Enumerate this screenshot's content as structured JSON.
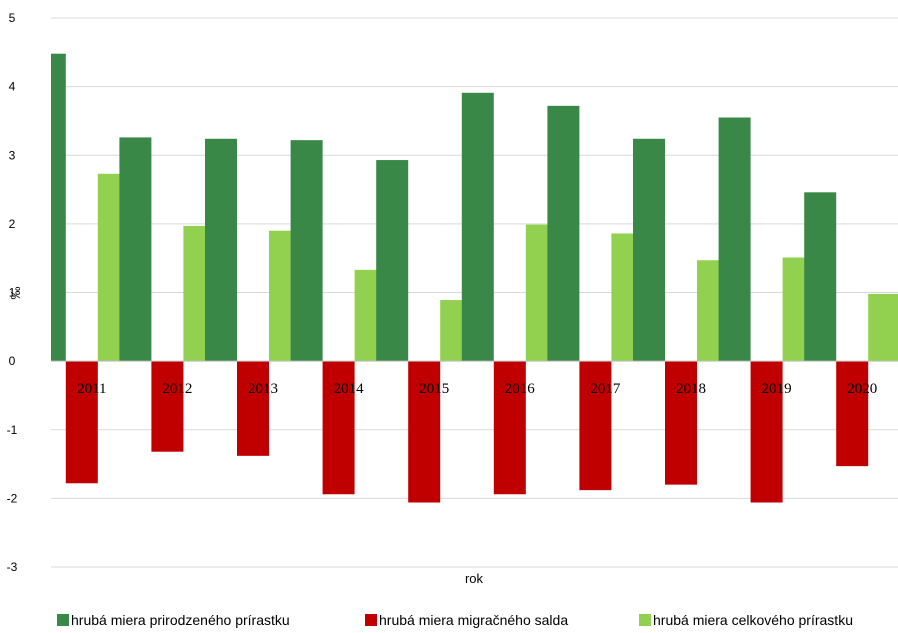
{
  "chart_data": {
    "type": "bar",
    "categories": [
      "2011",
      "2012",
      "2013",
      "2014",
      "2015",
      "2016",
      "2017",
      "2018",
      "2019",
      "2020"
    ],
    "series": [
      {
        "name": "hrubá miera prirodzeného prírastku",
        "color": "#3a8848",
        "values": [
          4.48,
          3.26,
          3.24,
          3.22,
          2.93,
          3.91,
          3.72,
          3.24,
          3.55,
          2.46
        ]
      },
      {
        "name": "hrubá miera migračného salda",
        "color": "#c00000",
        "values": [
          -1.78,
          -1.32,
          -1.38,
          -1.94,
          -2.06,
          -1.94,
          -1.88,
          -1.8,
          -2.06,
          -1.53
        ]
      },
      {
        "name": "hrubá miera celkového prírastku",
        "color": "#92d050",
        "values": [
          2.73,
          1.97,
          1.9,
          1.33,
          0.89,
          1.99,
          1.86,
          1.47,
          1.51,
          0.98
        ]
      }
    ],
    "title": "",
    "xlabel": "rok",
    "ylabel": "‰",
    "ylim": [
      -3,
      5
    ],
    "yticks": [
      "-3",
      "-2",
      "-1",
      "0",
      "1",
      "2",
      "3",
      "4",
      "5"
    ],
    "grid": true,
    "legend_position": "bottom"
  }
}
